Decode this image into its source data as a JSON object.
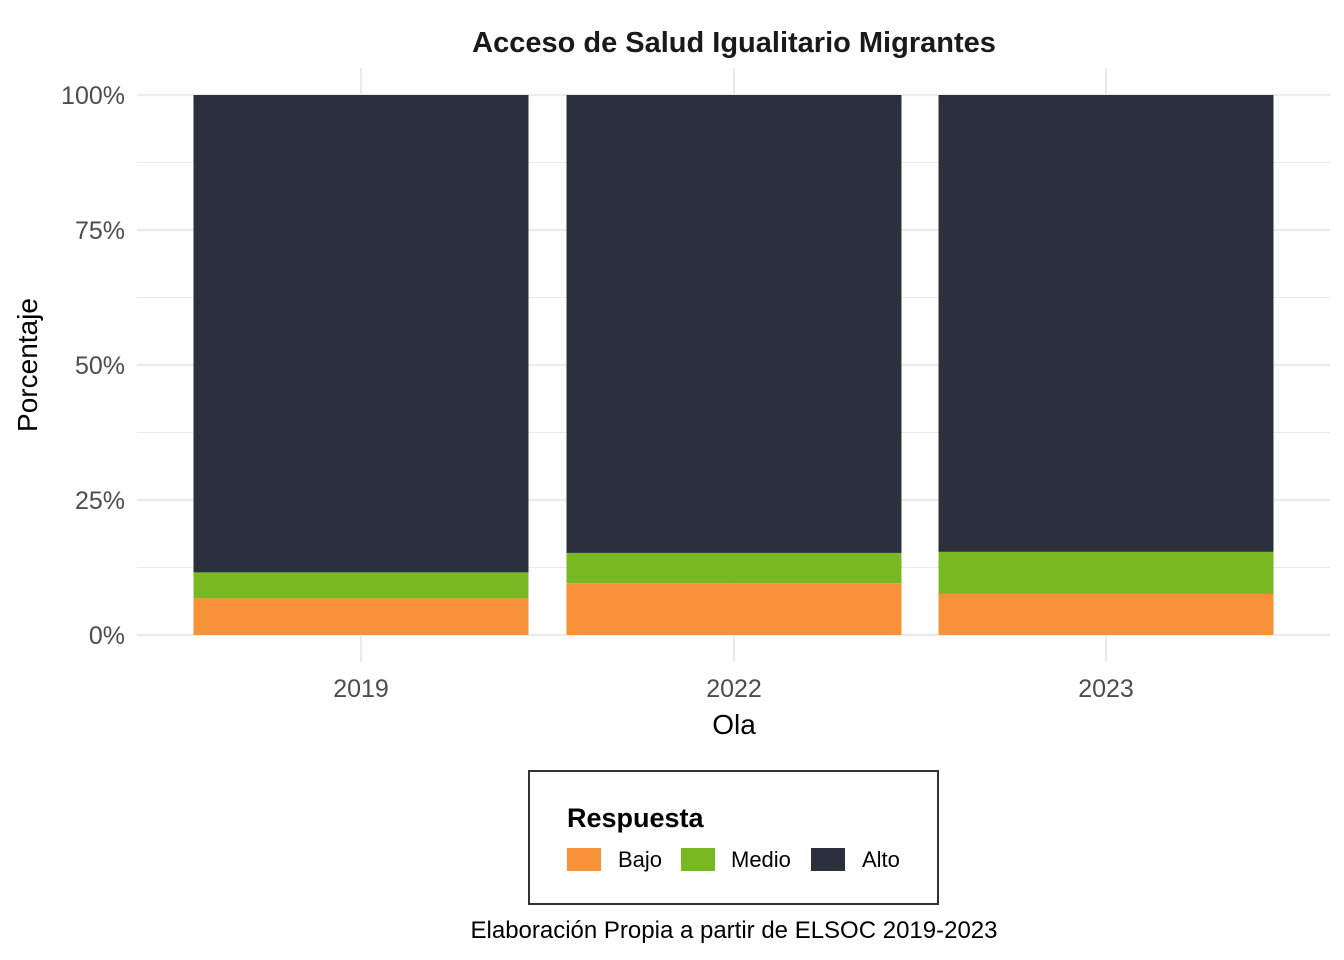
{
  "chart_data": {
    "type": "bar",
    "stacked": true,
    "title": "Acceso de Salud Igualitario Migrantes",
    "xlabel": "Ola",
    "ylabel": "Porcentaje",
    "caption": "Elaboración Propia a partir de ELSOC 2019-2023",
    "categories": [
      "2019",
      "2022",
      "2023"
    ],
    "series": [
      {
        "name": "Bajo",
        "color": "#f79239",
        "values": [
          6.8,
          9.6,
          7.6
        ]
      },
      {
        "name": "Medio",
        "color": "#77b823",
        "values": [
          4.8,
          5.6,
          7.8
        ]
      },
      {
        "name": "Alto",
        "color": "#2c303c",
        "values": [
          88.4,
          84.8,
          84.6
        ]
      }
    ],
    "ylim": [
      0,
      100
    ],
    "yticks": [
      0,
      25,
      50,
      75,
      100
    ],
    "ytick_labels": [
      "0%",
      "25%",
      "50%",
      "75%",
      "100%"
    ],
    "grid": true,
    "legend": {
      "title": "Respuesta",
      "position": "bottom"
    }
  }
}
